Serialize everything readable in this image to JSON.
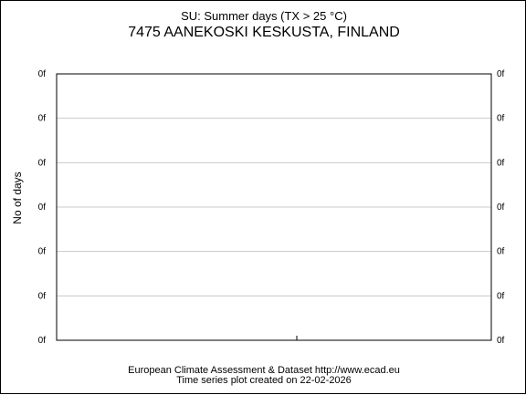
{
  "chart_data": {
    "type": "line",
    "title": "SU: Summer days (TX > 25 °C)",
    "subtitle": "7475 AANEKOSKI KESKUSTA, FINLAND",
    "ylabel": "No of days",
    "xlabel": "",
    "y_tick_labels_left": [
      "0f",
      "0f",
      "0f",
      "0f",
      "0f",
      "0f",
      "0f"
    ],
    "y_tick_labels_right": [
      "0f",
      "0f",
      "0f",
      "0f",
      "0f",
      "0f",
      "0f"
    ],
    "series": [],
    "grid": true
  },
  "footer": {
    "line1": "European Climate Assessment & Dataset  http://www.ecad.eu",
    "line2": "Time series plot created on 22-02-2026"
  }
}
